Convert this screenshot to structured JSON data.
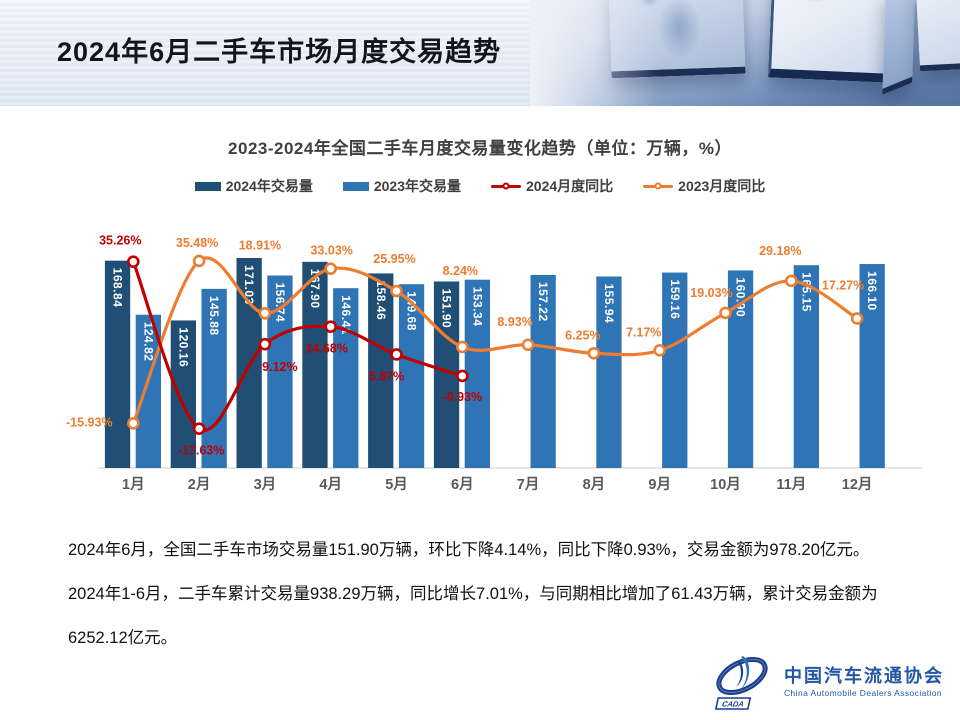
{
  "header": {
    "title": "2024年6月二手车市场月度交易趋势"
  },
  "chart_data": {
    "type": "combo-bar-line",
    "title": "2023-2024年全国二手车月度交易量变化趋势（单位：万辆，%）",
    "categories": [
      "1月",
      "2月",
      "3月",
      "4月",
      "5月",
      "6月",
      "7月",
      "8月",
      "9月",
      "10月",
      "11月",
      "12月"
    ],
    "series": [
      {
        "name": "2024年交易量",
        "type": "bar",
        "unit": "万辆",
        "color": "#204E74",
        "values": [
          168.84,
          120.16,
          171.03,
          167.9,
          158.46,
          151.9,
          null,
          null,
          null,
          null,
          null,
          null
        ]
      },
      {
        "name": "2023年交易量",
        "type": "bar",
        "unit": "万辆",
        "color": "#2F74B5",
        "values": [
          124.82,
          145.88,
          156.74,
          146.41,
          149.68,
          153.34,
          157.22,
          155.94,
          159.16,
          160.9,
          165.15,
          166.1
        ]
      },
      {
        "name": "2024月度同比",
        "type": "line",
        "unit": "%",
        "color": "#C00000",
        "values": [
          35.26,
          -17.63,
          9.12,
          14.68,
          5.87,
          -0.93,
          null,
          null,
          null,
          null,
          null,
          null
        ]
      },
      {
        "name": "2023月度同比",
        "type": "line",
        "unit": "%",
        "color": "#ED7D31",
        "values": [
          -15.93,
          35.48,
          18.91,
          33.03,
          25.95,
          8.24,
          8.93,
          6.25,
          7.17,
          19.03,
          29.18,
          17.27
        ]
      }
    ],
    "bar_axis_range": [
      0,
      180
    ],
    "grid": false,
    "legend_position": "top",
    "layout": {
      "pct_label_offsets_2024": [
        [
          -13,
          -21
        ],
        [
          2,
          22
        ],
        [
          15,
          23
        ],
        [
          -4,
          22
        ],
        [
          -10,
          22
        ],
        [
          0,
          21
        ]
      ],
      "pct_label_offsets_2023": [
        [
          -44,
          -1
        ],
        [
          -2,
          -18
        ],
        [
          -5,
          -68
        ],
        [
          1,
          -18
        ],
        [
          -2,
          -32
        ],
        [
          -2,
          -76
        ],
        [
          -13,
          -23
        ],
        [
          -11,
          -18
        ],
        [
          -16,
          -18
        ],
        [
          -14,
          -20
        ],
        [
          -11,
          -30
        ],
        [
          -14,
          -33
        ]
      ]
    }
  },
  "body": {
    "para1": "2024年6月，全国二手车市场交易量151.90万辆，环比下降4.14%，同比下降0.93%，交易金额为978.20亿元。",
    "para2": "2024年1-6月，二手车累计交易量938.29万辆，同比增长7.01%，与同期相比增加了61.43万辆，累计交易金额为6252.12亿元。"
  },
  "logo": {
    "badge": "CADA",
    "cn": "中国汽车流通协会",
    "en": "China Automobile Dealers Association"
  }
}
